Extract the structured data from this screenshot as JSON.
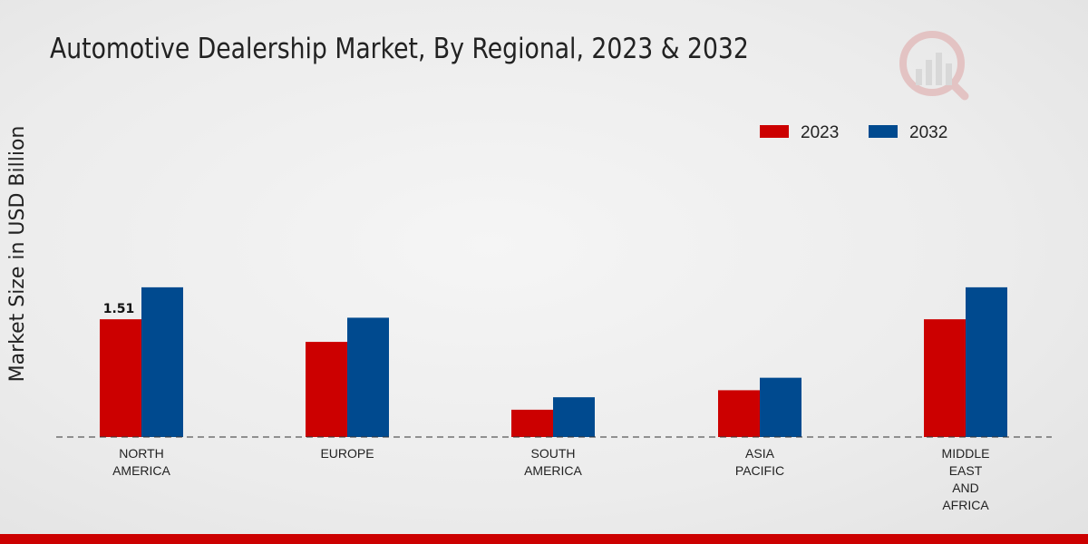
{
  "colors": {
    "series_2023": "#cc0000",
    "series_2032": "#004a8f",
    "bottom_bar": "#cc0000"
  },
  "logo_icon": "market-research-logo-icon",
  "chart_data": {
    "type": "bar",
    "title": "Automotive Dealership Market, By Regional, 2023 & 2032",
    "ylabel": "Market Size in USD Billion",
    "xlabel": "",
    "categories": [
      [
        "NORTH",
        "AMERICA"
      ],
      [
        "EUROPE"
      ],
      [
        "SOUTH",
        "AMERICA"
      ],
      [
        "ASIA",
        "PACIFIC"
      ],
      [
        "MIDDLE",
        "EAST",
        "AND",
        "AFRICA"
      ]
    ],
    "series": [
      {
        "name": "2023",
        "values": [
          1.51,
          1.22,
          0.35,
          0.6,
          1.51
        ]
      },
      {
        "name": "2032",
        "values": [
          1.92,
          1.53,
          0.51,
          0.76,
          1.92
        ]
      }
    ],
    "data_labels": [
      {
        "series": 0,
        "index": 0,
        "text": "1.51"
      }
    ],
    "ylim": [
      0,
      4.5
    ],
    "grid": false,
    "legend": {
      "position": "top-right"
    }
  }
}
